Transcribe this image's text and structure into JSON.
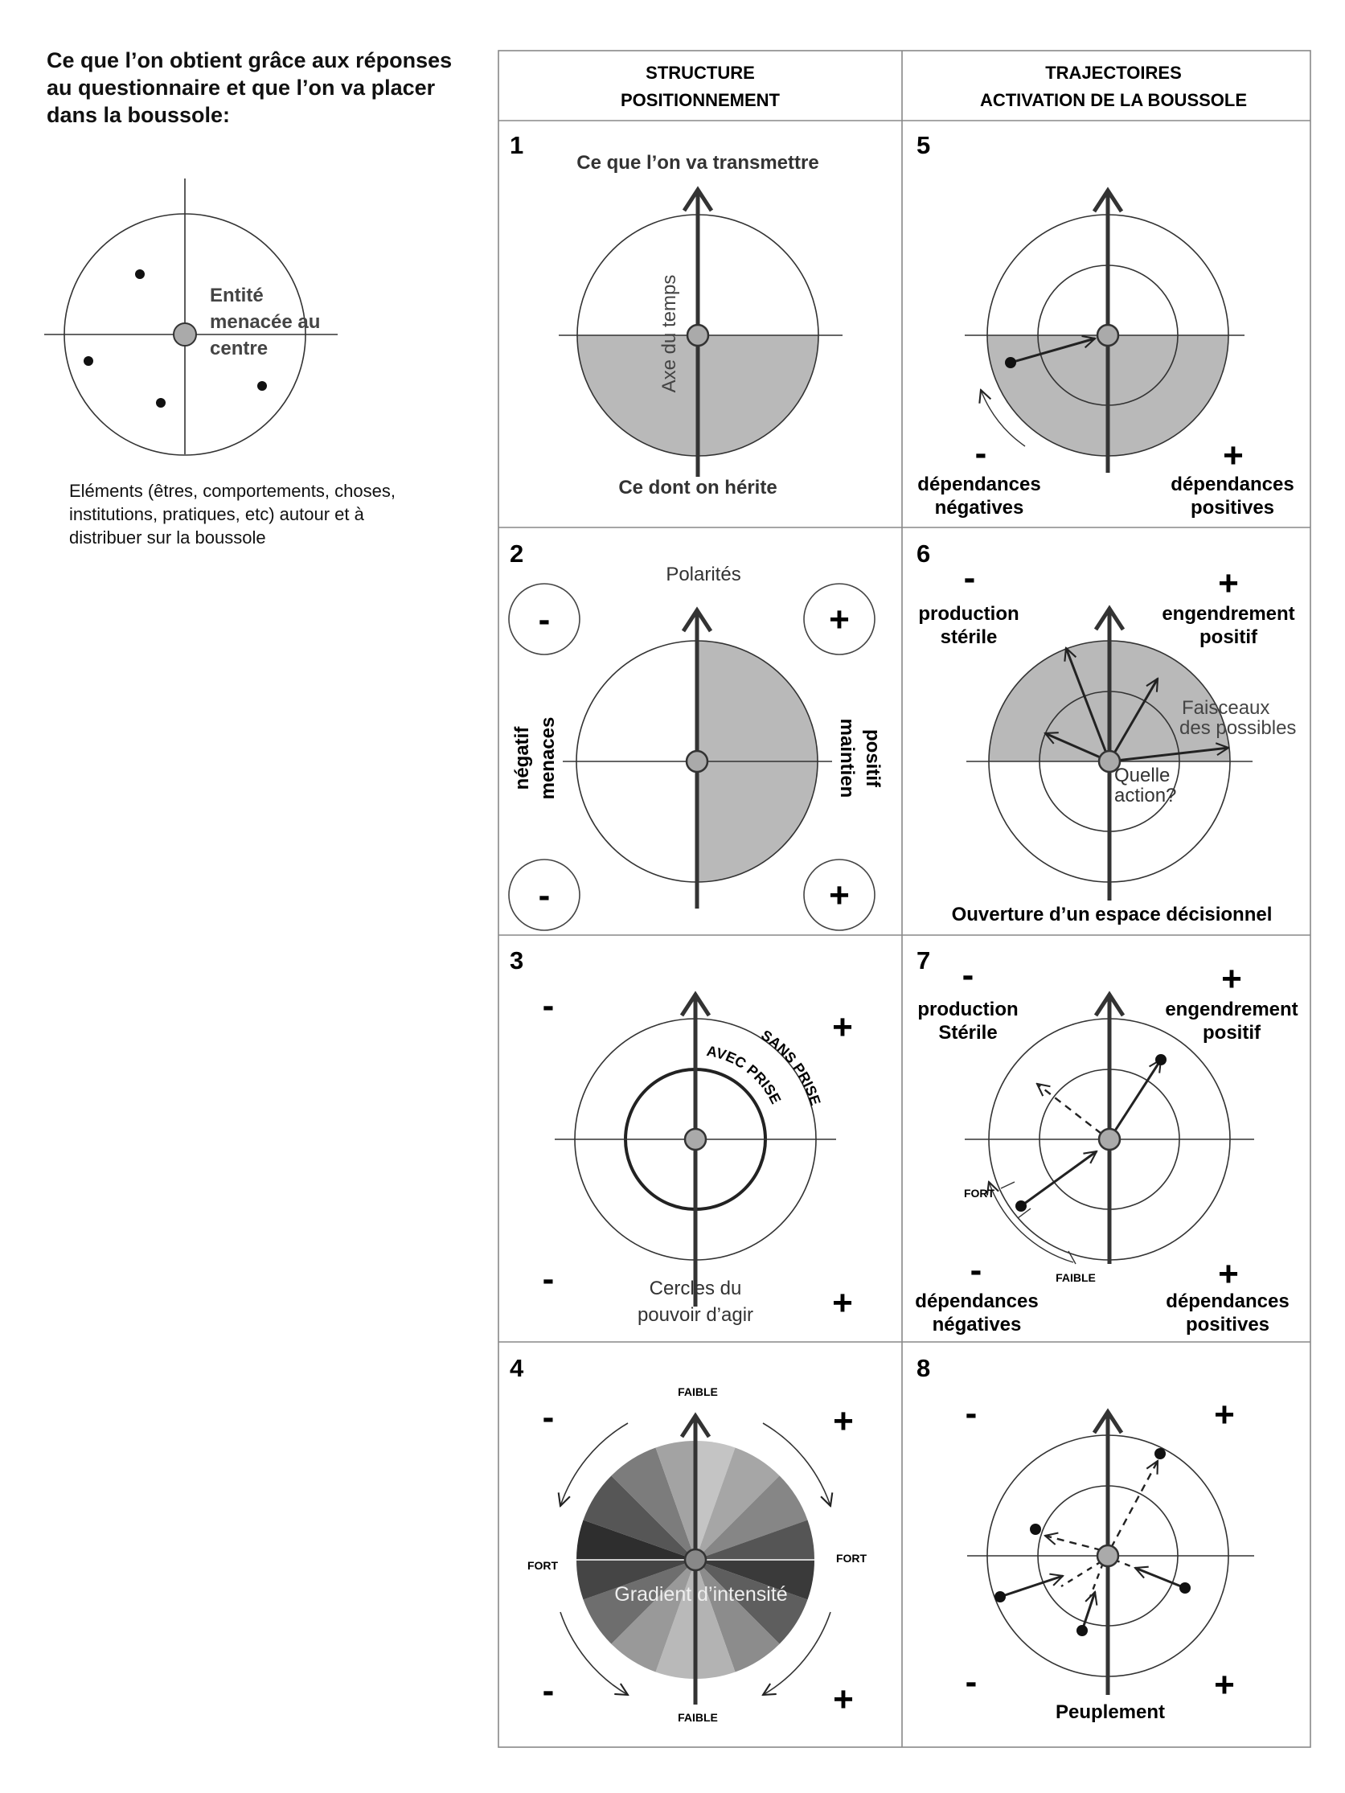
{
  "intro": {
    "title": "Ce que l’on obtient grâce aux réponses au questionnaire et que l’on va placer dans la boussole:",
    "center_label_lines": [
      "Entité",
      "menacée au",
      "centre"
    ],
    "description": "Eléments (êtres, comportements, choses, institutions, pratiques, etc) autour et à distribuer sur la boussole"
  },
  "table": {
    "col_left_lines": [
      "STRUCTURE",
      "POSITIONNEMENT"
    ],
    "col_right_lines": [
      "TRAJECTOIRES",
      "ACTIVATION DE LA BOUSSOLE"
    ]
  },
  "panels": {
    "p1": {
      "num": "1",
      "top": "Ce que l’on va transmettre",
      "axis": "Axe du temps",
      "bottom": "Ce dont on hérite"
    },
    "p2": {
      "num": "2",
      "title": "Polarités",
      "minus": "-",
      "plus": "+",
      "left_lines": [
        "négatif",
        "menaces"
      ],
      "right_lines": [
        "positif",
        "maintien"
      ]
    },
    "p3": {
      "num": "3",
      "minus": "-",
      "plus": "+",
      "outer": "SANS PRISE",
      "inner": "AVEC PRISE",
      "bottom_lines": [
        "Cercles du",
        "pouvoir d’agir"
      ]
    },
    "p4": {
      "num": "4",
      "minus": "-",
      "plus": "+",
      "faible": "FAIBLE",
      "fort": "FORT",
      "center": "Gradient d’intensité"
    },
    "p5": {
      "num": "5",
      "minus": "-",
      "plus": "+",
      "neg_lines": [
        "dépendances",
        "négatives"
      ],
      "pos_lines": [
        "dépendances",
        "positives"
      ]
    },
    "p6": {
      "num": "6",
      "minus": "-",
      "plus": "+",
      "left_lines": [
        "production",
        "stérile"
      ],
      "right_lines": [
        "engendrement",
        "positif"
      ],
      "beam_lines": [
        "Faisceaux",
        "des possibles"
      ],
      "question_lines": [
        "Quelle",
        "action?"
      ],
      "bottom": "Ouverture d’un espace décisionnel"
    },
    "p7": {
      "num": "7",
      "minus": "-",
      "plus": "+",
      "left_lines": [
        "production",
        "Stérile"
      ],
      "right_lines": [
        "engendrement",
        "positif"
      ],
      "fort": "FORT",
      "faible": "FAIBLE",
      "neg_lines": [
        "dépendances",
        "négatives"
      ],
      "pos_lines": [
        "dépendances",
        "positives"
      ]
    },
    "p8": {
      "num": "8",
      "minus": "-",
      "plus": "+",
      "bottom": "Peuplement"
    }
  }
}
